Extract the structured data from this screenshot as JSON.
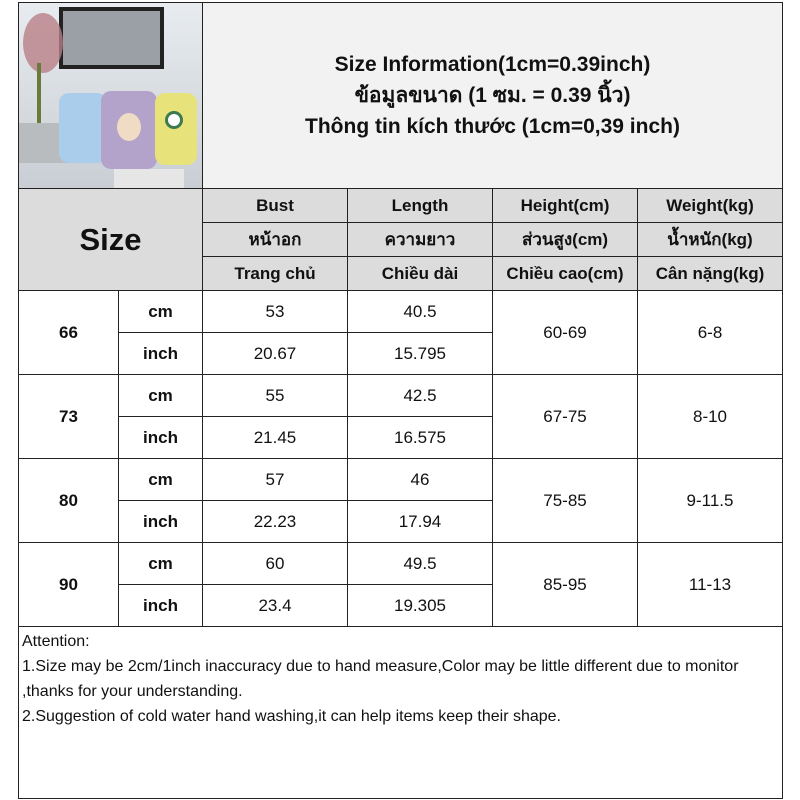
{
  "title": {
    "line1": "Size Information(1cm=0.39inch)",
    "line2": "ข้อมูลขนาด (1 ซม. = 0.39 นิ้ว)",
    "line3": "Thông tin kích thước (1cm=0,39 inch)"
  },
  "photo": {
    "description_icon": "product-photo-rompers"
  },
  "size_label": "Size",
  "headers": [
    {
      "en": "Bust",
      "th": "หน้าอก",
      "vi": "Trang chủ"
    },
    {
      "en": "Length",
      "th": "ความยาว",
      "vi": "Chiều dài"
    },
    {
      "en": "Height(cm)",
      "th": "ส่วนสูง(cm)",
      "vi": "Chiều cao(cm)"
    },
    {
      "en": "Weight(kg)",
      "th": "น้ำหนัก(kg)",
      "vi": "Cân nặng(kg)"
    }
  ],
  "rows": [
    {
      "size": "66",
      "cm_label": "cm",
      "inch_label": "inch",
      "bust_cm": "53",
      "bust_inch": "20.67",
      "length_cm": "40.5",
      "length_inch": "15.795",
      "height": "60-69",
      "weight": "6-8"
    },
    {
      "size": "73",
      "cm_label": "cm",
      "inch_label": "inch",
      "bust_cm": "55",
      "bust_inch": "21.45",
      "length_cm": "42.5",
      "length_inch": "16.575",
      "height": "67-75",
      "weight": "8-10"
    },
    {
      "size": "80",
      "cm_label": "cm",
      "inch_label": "inch",
      "bust_cm": "57",
      "bust_inch": "22.23",
      "length_cm": "46",
      "length_inch": "17.94",
      "height": "75-85",
      "weight": "9-11.5"
    },
    {
      "size": "90",
      "cm_label": "cm",
      "inch_label": "inch",
      "bust_cm": "60",
      "bust_inch": "23.4",
      "length_cm": "49.5",
      "length_inch": "19.305",
      "height": "85-95",
      "weight": "11-13"
    }
  ],
  "attention": {
    "heading": "Attention:",
    "note1": "1.Size may be 2cm/1inch inaccuracy due to hand measure,Color may be little different due to monitor ,thanks for your understanding.",
    "note2": "2.Suggestion of cold water hand washing,it can help items keep their shape."
  }
}
